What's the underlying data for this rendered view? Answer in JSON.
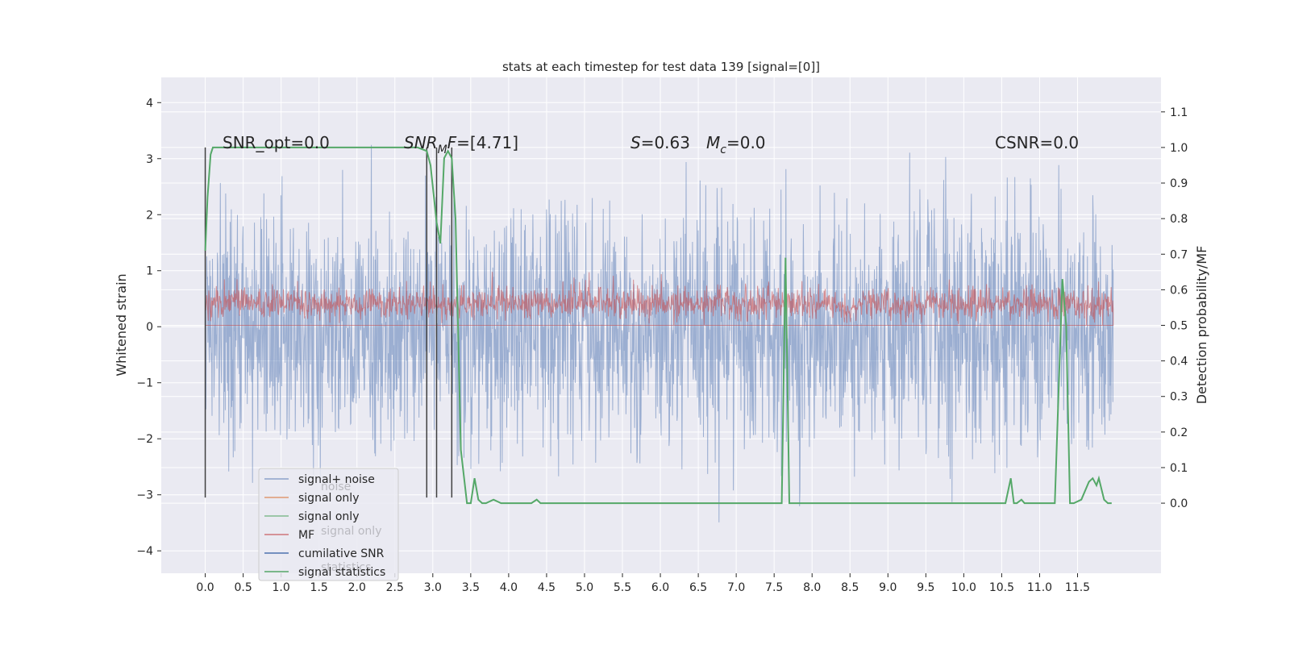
{
  "chart_data": {
    "type": "line",
    "title": "stats at each timestep for test data 139 [signal=[0]]",
    "xlabel": "",
    "ylabel": "Whitened strain",
    "y2label": "Detection probability/MF",
    "xlim": [
      -0.58,
      12.6
    ],
    "ylim": [
      -4.4,
      4.45
    ],
    "y2lim": [
      -0.197,
      1.197
    ],
    "xticks": [
      0.0,
      0.5,
      1.0,
      1.5,
      2.0,
      2.5,
      3.0,
      3.5,
      4.0,
      4.5,
      5.0,
      5.5,
      6.0,
      6.5,
      7.0,
      7.5,
      8.0,
      8.5,
      9.0,
      9.5,
      10.0,
      10.5,
      11.0,
      11.5
    ],
    "yticks": [
      -4,
      -3,
      -2,
      -1,
      0,
      1,
      2,
      3,
      4
    ],
    "y2ticks": [
      0.0,
      0.1,
      0.2,
      0.3,
      0.4,
      0.5,
      0.6,
      0.7,
      0.8,
      0.9,
      1.0,
      1.1
    ],
    "grid": true,
    "colors": {
      "background": "#eaeaf2",
      "grid": "#ffffff",
      "noise": "#4c72b0",
      "signal_only_1": "#dd8452",
      "signal_only_2": "#55a868",
      "mf": "#c44e52",
      "cumulative_snr": "#4c72b0",
      "statistics": "#55a868",
      "vlines": "#404040"
    },
    "annotations": {
      "snr_opt": "SNR_opt=0.0",
      "snr_mf": "=[4.71]",
      "s_val": "=0.63",
      "mc_val": "=0.0",
      "csnr": "CSNR=0.0"
    },
    "legend": {
      "placement": "lower-left",
      "entries": [
        "signal+ noise",
        "signal only",
        "signal only",
        "MF",
        "cumilative SNR",
        "signal statistics"
      ],
      "ghost_entries": [
        "noise",
        "signal only",
        "statistics"
      ]
    },
    "series": [
      {
        "name": "signal+ noise",
        "axis": "y",
        "style": "dense noise, envelope approx. ±2.5 with spikes to ±4",
        "x_range": [
          0.0,
          11.97
        ],
        "envelope": [
          -3.0,
          3.0
        ]
      },
      {
        "name": "MF",
        "axis": "y2",
        "x_range": [
          0.0,
          11.97
        ],
        "baseline": 0.5,
        "mean": 0.56,
        "max": 0.66
      },
      {
        "name": "signal statistics",
        "axis": "y2",
        "x": [
          0.0,
          0.03,
          0.07,
          0.1,
          0.15,
          0.3,
          1.0,
          2.0,
          2.5,
          2.8,
          2.92,
          2.97,
          3.05,
          3.1,
          3.15,
          3.2,
          3.25,
          3.3,
          3.37,
          3.45,
          3.5,
          3.55,
          3.6,
          3.65,
          3.7,
          3.8,
          3.9,
          4.0,
          4.1,
          4.2,
          4.3,
          4.37,
          4.42,
          4.5,
          4.6,
          4.7,
          4.8,
          4.9,
          5.0,
          5.2,
          6.0,
          7.0,
          7.6,
          7.65,
          7.7,
          7.75,
          7.9,
          8.0,
          8.2,
          9.0,
          10.0,
          10.55,
          10.62,
          10.66,
          10.7,
          10.76,
          10.8,
          10.86,
          11.0,
          11.2,
          11.3,
          11.35,
          11.4,
          11.45,
          11.55,
          11.65,
          11.7,
          11.75,
          11.78,
          11.85,
          11.9,
          11.95
        ],
        "values": [
          0.71,
          0.86,
          0.98,
          1.0,
          1.0,
          1.0,
          1.0,
          1.0,
          1.0,
          1.0,
          0.99,
          0.95,
          0.79,
          0.73,
          0.97,
          0.99,
          0.97,
          0.8,
          0.15,
          0.0,
          0.0,
          0.07,
          0.01,
          0.0,
          0.0,
          0.01,
          0.0,
          0.0,
          0.0,
          0.0,
          0.0,
          0.01,
          0.0,
          0.0,
          0.0,
          0.0,
          0.0,
          0.0,
          0.0,
          0.0,
          0.0,
          0.0,
          0.0,
          0.69,
          0.0,
          0.0,
          0.0,
          0.0,
          0.0,
          0.0,
          0.0,
          0.0,
          0.07,
          0.0,
          0.0,
          0.01,
          0.0,
          0.0,
          0.0,
          0.0,
          0.63,
          0.5,
          0.0,
          0.0,
          0.01,
          0.06,
          0.07,
          0.05,
          0.07,
          0.01,
          0.0,
          0.0
        ]
      },
      {
        "name": "vertical markers",
        "axis": "y",
        "x": [
          0.0,
          2.92,
          3.05,
          3.25
        ],
        "y_from": -3.05,
        "y_to": 3.2
      }
    ]
  }
}
